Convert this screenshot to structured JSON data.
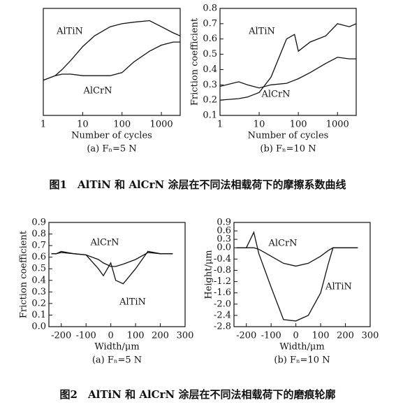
{
  "chart_data": [
    {
      "type": "line",
      "x_label": "Number of cycles",
      "subtitle": "(a) Fₙ=5 N",
      "xlog": true,
      "x": [
        1,
        2,
        3,
        5,
        10,
        20,
        50,
        100,
        200,
        500,
        1000,
        2000,
        3000
      ],
      "xlim": [
        1,
        3000
      ],
      "xticks": [
        1,
        10,
        100,
        1000
      ],
      "ylim": [
        0.1,
        0.8
      ],
      "series": [
        {
          "name": "AlTiN",
          "color": "#111111",
          "values": [
            0.33,
            0.36,
            0.4,
            0.46,
            0.55,
            0.62,
            0.68,
            0.7,
            0.71,
            0.72,
            0.68,
            0.64,
            0.62
          ]
        },
        {
          "name": "AlCrN",
          "color": "#111111",
          "values": [
            0.33,
            0.36,
            0.37,
            0.37,
            0.36,
            0.36,
            0.36,
            0.38,
            0.45,
            0.52,
            0.56,
            0.58,
            0.58
          ]
        }
      ]
    },
    {
      "type": "line",
      "x_label": "Number of cycles",
      "y_label": "Friction coefficient",
      "subtitle": "(b) Fₙ=10 N",
      "xlog": true,
      "x": [
        1,
        3,
        5,
        10,
        20,
        50,
        80,
        100,
        200,
        500,
        1000,
        2000,
        3000
      ],
      "xlim": [
        1,
        3000
      ],
      "xticks": [
        1,
        10,
        100,
        1000
      ],
      "ylim": [
        0.1,
        0.8
      ],
      "yticks": [
        0.1,
        0.2,
        0.3,
        0.4,
        0.5,
        0.6,
        0.7,
        0.8
      ],
      "series": [
        {
          "name": "AlTiN",
          "color": "#111111",
          "values": [
            0.2,
            0.21,
            0.22,
            0.25,
            0.35,
            0.6,
            0.63,
            0.52,
            0.58,
            0.62,
            0.7,
            0.68,
            0.7
          ]
        },
        {
          "name": "AlCrN",
          "color": "#111111",
          "values": [
            0.29,
            0.32,
            0.3,
            0.28,
            0.3,
            0.31,
            0.33,
            0.34,
            0.38,
            0.44,
            0.48,
            0.47,
            0.47
          ]
        }
      ]
    },
    {
      "type": "line",
      "x_label": "Width/μm",
      "y_label": "Friction coefficient",
      "subtitle": "(a) Fₙ=5 N",
      "x": [
        -240,
        -220,
        -200,
        -150,
        -100,
        -50,
        -30,
        0,
        20,
        50,
        100,
        150,
        200,
        250
      ],
      "xlim": [
        -250,
        300
      ],
      "xticks": [
        -200,
        -100,
        0,
        100,
        200,
        300
      ],
      "ylim": [
        0,
        0.9
      ],
      "yticks": [
        {
          "value": 0,
          "label": "0.0"
        },
        0.1,
        0.2,
        0.3,
        0.4,
        0.5,
        0.6,
        0.7,
        0.8,
        0.9
      ],
      "series": [
        {
          "name": "AlCrN",
          "color": "#111111",
          "values": [
            0.63,
            0.63,
            0.64,
            0.63,
            0.62,
            0.58,
            0.55,
            0.52,
            0.52,
            0.54,
            0.58,
            0.64,
            0.63,
            0.63
          ]
        },
        {
          "name": "AlTiN",
          "color": "#111111",
          "values": [
            0.63,
            0.63,
            0.65,
            0.63,
            0.62,
            0.5,
            0.44,
            0.55,
            0.4,
            0.37,
            0.5,
            0.65,
            0.63,
            0.63
          ]
        }
      ]
    },
    {
      "type": "line",
      "x_label": "Width/μm",
      "y_label": "Height/μm",
      "subtitle": "(b) Fₙ=10 N",
      "x": [
        -240,
        -200,
        -170,
        -150,
        -100,
        -50,
        0,
        50,
        100,
        130,
        150,
        200,
        250
      ],
      "xlim": [
        -250,
        300
      ],
      "xticks": [
        -200,
        -100,
        0,
        100,
        200,
        300
      ],
      "ylim": [
        -2.8,
        0.9
      ],
      "yticks": [
        0.9,
        0.6,
        0.3,
        {
          "value": 0,
          "label": "0.0"
        },
        -0.4,
        -0.8,
        -1.2,
        -1.6,
        {
          "value": -2,
          "label": "-2.0"
        },
        -2.4,
        -2.8
      ],
      "series": [
        {
          "name": "AlCrN",
          "color": "#111111",
          "values": [
            0,
            0,
            0,
            -0.05,
            -0.3,
            -0.55,
            -0.65,
            -0.55,
            -0.3,
            -0.1,
            0,
            0,
            0
          ]
        },
        {
          "name": "AlTiN",
          "color": "#111111",
          "values": [
            0,
            0,
            0.55,
            -0.2,
            -1.4,
            -2.55,
            -2.6,
            -2.4,
            -1.6,
            -0.6,
            0,
            0,
            0
          ]
        }
      ]
    }
  ],
  "captions": [
    "图1　AlTiN 和 AlCrN 涂层在不同法相载荷下的摩擦系数曲线",
    "图2　AlTiN 和 AlCrN 涂层在不同法相载荷下的磨痕轮廓"
  ]
}
